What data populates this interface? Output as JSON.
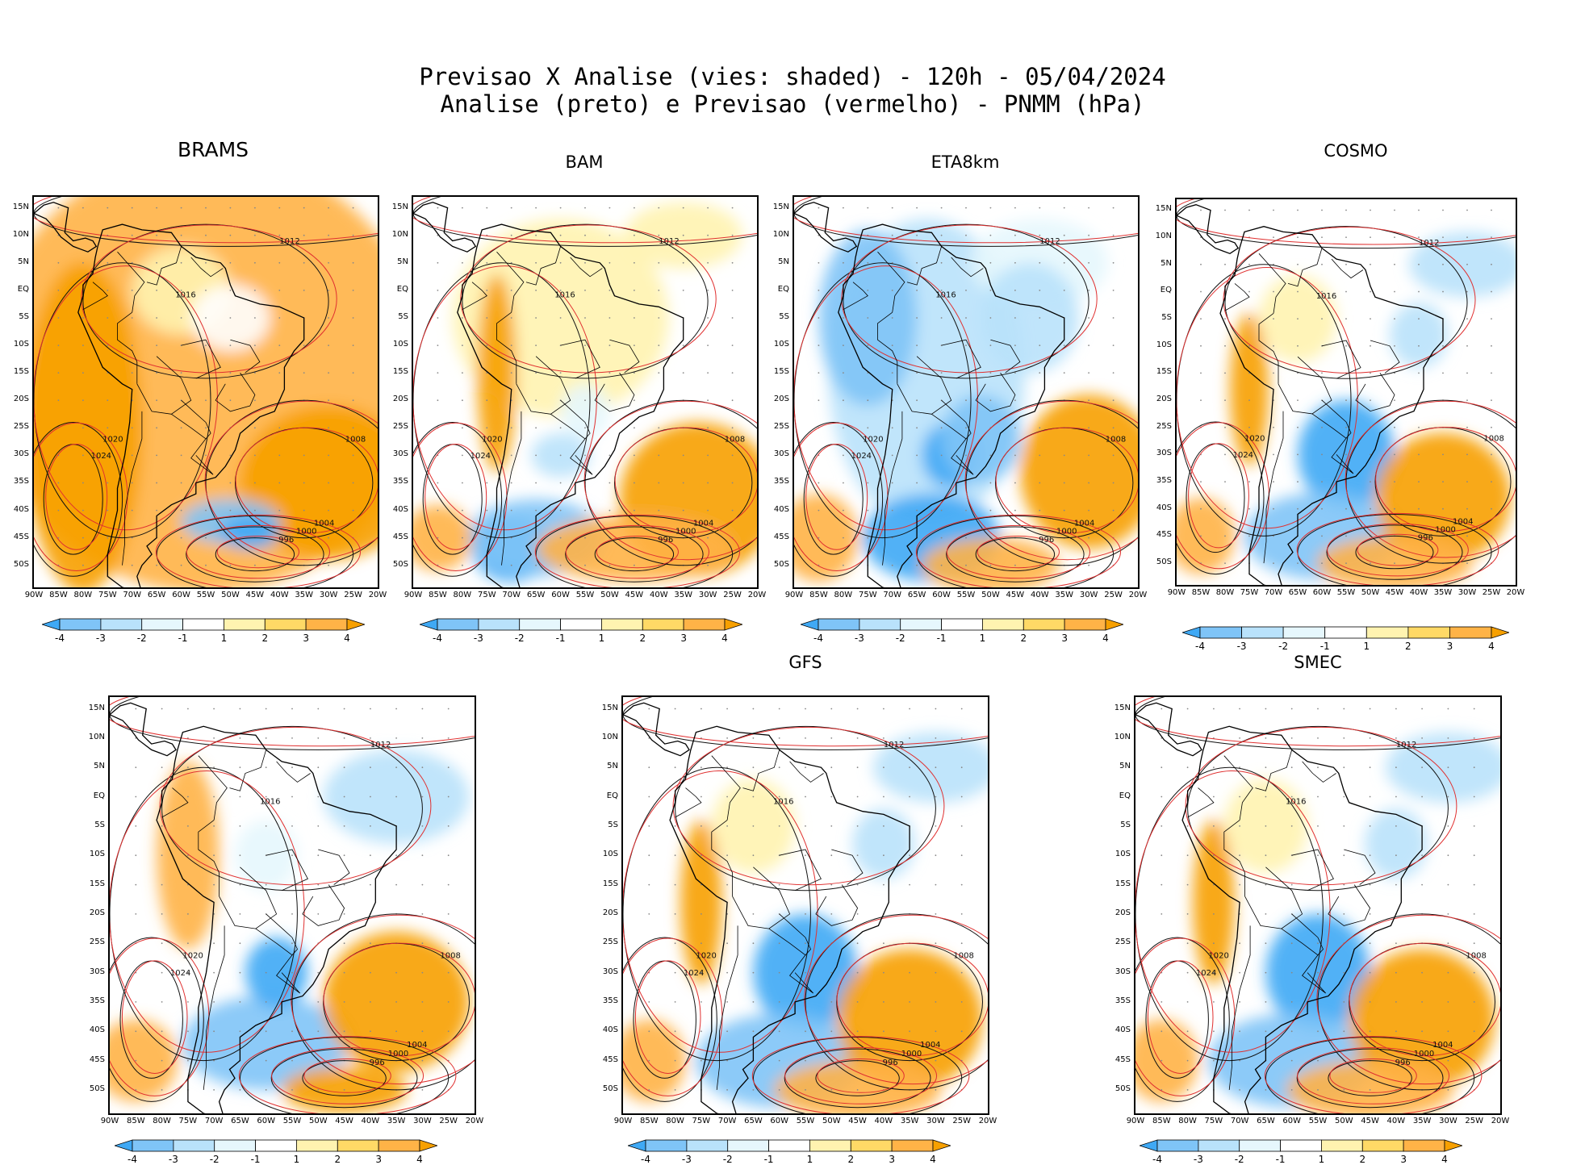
{
  "header": {
    "line1": "Previsao X Analise (vies: shaded) - 120h - 05/04/2024",
    "line2": "Analise (preto) e Previsao (vermelho) - PNMM (hPa)"
  },
  "axes": {
    "lat_labels": [
      "15N",
      "10N",
      "5N",
      "EQ",
      "5S",
      "10S",
      "15S",
      "20S",
      "25S",
      "30S",
      "35S",
      "40S",
      "45S",
      "50S"
    ],
    "lon_labels": [
      "90W",
      "85W",
      "80W",
      "75W",
      "70W",
      "65W",
      "60W",
      "55W",
      "50W",
      "45W",
      "40W",
      "35W",
      "30W",
      "25W",
      "20W"
    ]
  },
  "colorbar": {
    "labels": [
      "-4",
      "-3",
      "-2",
      "-1",
      "1",
      "2",
      "3",
      "4"
    ],
    "colors": [
      "#3fa9f5",
      "#7fc4f7",
      "#b9e2fb",
      "#e6f7fd",
      "#ffffff",
      "#fff3b0",
      "#ffd966",
      "#ffb347",
      "#f7a000"
    ]
  },
  "panels": [
    {
      "name": "BRAMS",
      "bias": "warm"
    },
    {
      "name": "BAM",
      "bias": "mixed-warm"
    },
    {
      "name": "ETA8km",
      "bias": "cold"
    },
    {
      "name": "COSMO",
      "bias": "mixed"
    },
    {
      "name": "",
      "bias": "mixed-cold"
    },
    {
      "name": "GFS",
      "bias": "mixed"
    },
    {
      "name": "SMEC",
      "bias": "mixed"
    }
  ],
  "isobars": {
    "analysis": [
      "1024",
      "1020",
      "1016",
      "1012",
      "1008",
      "1004",
      "1000",
      "996",
      "992"
    ],
    "forecast": [
      "1020",
      "1016",
      "1012",
      "1008",
      "1004",
      "1000",
      "996"
    ]
  }
}
